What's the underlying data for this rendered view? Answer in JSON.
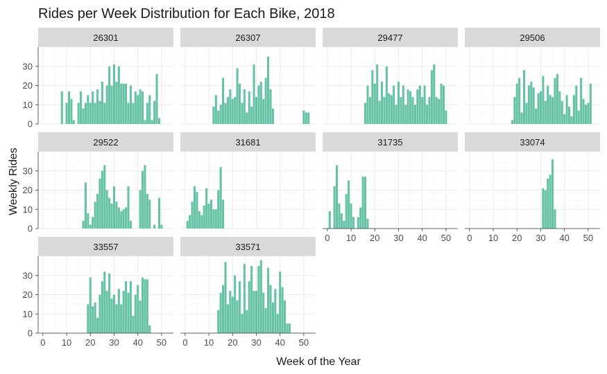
{
  "chart_data": {
    "type": "bar",
    "title": "Rides per Week Distribution for Each Bike, 2018",
    "xlabel": "Week of the Year",
    "ylabel": "Weekly Rides",
    "xlim": [
      -2,
      55
    ],
    "ylim": [
      0,
      40
    ],
    "xticks": [
      0,
      10,
      20,
      30,
      40,
      50
    ],
    "yticks": [
      0,
      10,
      20,
      30
    ],
    "bar_color": "#66c2a5",
    "strip_color": "#d9d9d9",
    "grid": true,
    "layout": {
      "rows": 3,
      "cols": 4
    },
    "panels": [
      {
        "name": "26301",
        "x": [
          8,
          9,
          10,
          11,
          12,
          13,
          14,
          15,
          16,
          17,
          18,
          19,
          20,
          21,
          22,
          23,
          24,
          25,
          26,
          27,
          28,
          29,
          30,
          31,
          32,
          33,
          34,
          35,
          36,
          37,
          38,
          39,
          40,
          41,
          42,
          43,
          44,
          45,
          46,
          47,
          48,
          49
        ],
        "y": [
          17,
          0,
          11,
          17,
          13,
          2,
          0,
          11,
          17,
          8,
          11,
          15,
          11,
          17,
          11,
          18,
          12,
          22,
          11,
          20,
          30,
          20,
          31,
          22,
          30,
          21,
          21,
          21,
          11,
          20,
          11,
          17,
          15,
          18,
          17,
          2,
          11,
          15,
          2,
          12,
          26,
          3
        ]
      },
      {
        "name": "26307",
        "x": [
          12,
          13,
          14,
          15,
          16,
          17,
          18,
          19,
          20,
          21,
          22,
          23,
          24,
          25,
          26,
          27,
          28,
          29,
          30,
          31,
          32,
          33,
          34,
          35,
          36,
          37,
          38,
          39,
          40,
          41,
          42,
          43,
          44,
          45,
          46,
          47,
          48,
          49,
          50,
          51,
          52
        ],
        "y": [
          9,
          15,
          7,
          10,
          24,
          11,
          14,
          18,
          13,
          14,
          29,
          21,
          11,
          18,
          6,
          17,
          9,
          31,
          14,
          20,
          22,
          13,
          24,
          35,
          18,
          8,
          0,
          0,
          0,
          0,
          0,
          0,
          0,
          0,
          0,
          0,
          0,
          0,
          7,
          6,
          6
        ]
      },
      {
        "name": "29477",
        "x": [
          16,
          17,
          18,
          19,
          20,
          21,
          22,
          23,
          24,
          25,
          26,
          27,
          28,
          29,
          30,
          31,
          32,
          33,
          34,
          35,
          36,
          37,
          38,
          39,
          40,
          41,
          42,
          43,
          44,
          45,
          46,
          47,
          48,
          49,
          50
        ],
        "y": [
          11,
          20,
          14,
          28,
          21,
          31,
          12,
          22,
          14,
          30,
          16,
          15,
          20,
          10,
          22,
          14,
          20,
          10,
          18,
          17,
          14,
          10,
          18,
          20,
          14,
          20,
          10,
          14,
          28,
          31,
          14,
          13,
          21,
          20,
          7
        ]
      },
      {
        "name": "29506",
        "x": [
          18,
          19,
          20,
          21,
          22,
          23,
          24,
          25,
          26,
          27,
          28,
          29,
          30,
          31,
          32,
          33,
          34,
          35,
          36,
          37,
          38,
          39,
          40,
          41,
          42,
          43,
          44,
          45,
          46,
          47,
          48,
          49,
          50,
          51
        ],
        "y": [
          2,
          14,
          21,
          24,
          6,
          28,
          11,
          20,
          22,
          19,
          8,
          16,
          17,
          25,
          12,
          20,
          15,
          14,
          24,
          26,
          17,
          12,
          5,
          15,
          9,
          4,
          15,
          20,
          7,
          24,
          13,
          10,
          11,
          21
        ]
      },
      {
        "name": "29522",
        "x": [
          17,
          18,
          19,
          20,
          21,
          22,
          23,
          24,
          25,
          26,
          27,
          28,
          29,
          30,
          31,
          32,
          33,
          34,
          35,
          36,
          37,
          38,
          39,
          40,
          41,
          42,
          43,
          44,
          45,
          46,
          47,
          48,
          49,
          50
        ],
        "y": [
          4,
          24,
          8,
          2,
          6,
          14,
          18,
          26,
          30,
          33,
          20,
          16,
          13,
          22,
          14,
          11,
          9,
          10,
          11,
          22,
          4,
          0,
          0,
          0,
          20,
          30,
          33,
          18,
          15,
          0,
          2,
          0,
          16,
          2
        ]
      },
      {
        "name": "31681",
        "x": [
          1,
          2,
          3,
          4,
          5,
          6,
          7,
          8,
          9,
          10,
          11,
          12,
          13,
          14,
          15,
          16
        ],
        "y": [
          4,
          7,
          14,
          22,
          19,
          9,
          7,
          12,
          21,
          13,
          15,
          10,
          10,
          20,
          32,
          15
        ]
      },
      {
        "name": "31735",
        "x": [
          1,
          2,
          3,
          4,
          5,
          6,
          7,
          8,
          9,
          10,
          11,
          12,
          13,
          14,
          15,
          16,
          17
        ],
        "y": [
          9,
          0,
          22,
          33,
          13,
          8,
          4,
          18,
          25,
          13,
          6,
          0,
          6,
          11,
          27,
          27,
          5
        ]
      },
      {
        "name": "33074",
        "x": [
          31,
          32,
          33,
          34,
          35,
          36
        ],
        "y": [
          21,
          20,
          26,
          28,
          36,
          10
        ]
      },
      {
        "name": "33557",
        "x": [
          19,
          20,
          21,
          22,
          23,
          24,
          25,
          26,
          27,
          28,
          29,
          30,
          31,
          32,
          33,
          34,
          35,
          36,
          37,
          38,
          39,
          40,
          41,
          42,
          43,
          44,
          45,
          46
        ],
        "y": [
          15,
          29,
          14,
          16,
          8,
          20,
          27,
          32,
          22,
          31,
          18,
          20,
          15,
          23,
          15,
          22,
          27,
          21,
          27,
          9,
          20,
          25,
          17,
          29,
          28,
          28,
          4,
          0
        ]
      },
      {
        "name": "33571",
        "x": [
          14,
          15,
          16,
          17,
          18,
          19,
          20,
          21,
          22,
          23,
          24,
          25,
          26,
          27,
          28,
          29,
          30,
          31,
          32,
          33,
          34,
          35,
          36,
          37,
          38,
          39,
          40,
          41,
          42,
          43,
          44
        ],
        "y": [
          12,
          21,
          25,
          37,
          15,
          22,
          19,
          30,
          17,
          27,
          10,
          36,
          12,
          27,
          35,
          22,
          22,
          35,
          38,
          21,
          13,
          34,
          25,
          16,
          23,
          10,
          32,
          24,
          17,
          5,
          5
        ]
      }
    ]
  }
}
